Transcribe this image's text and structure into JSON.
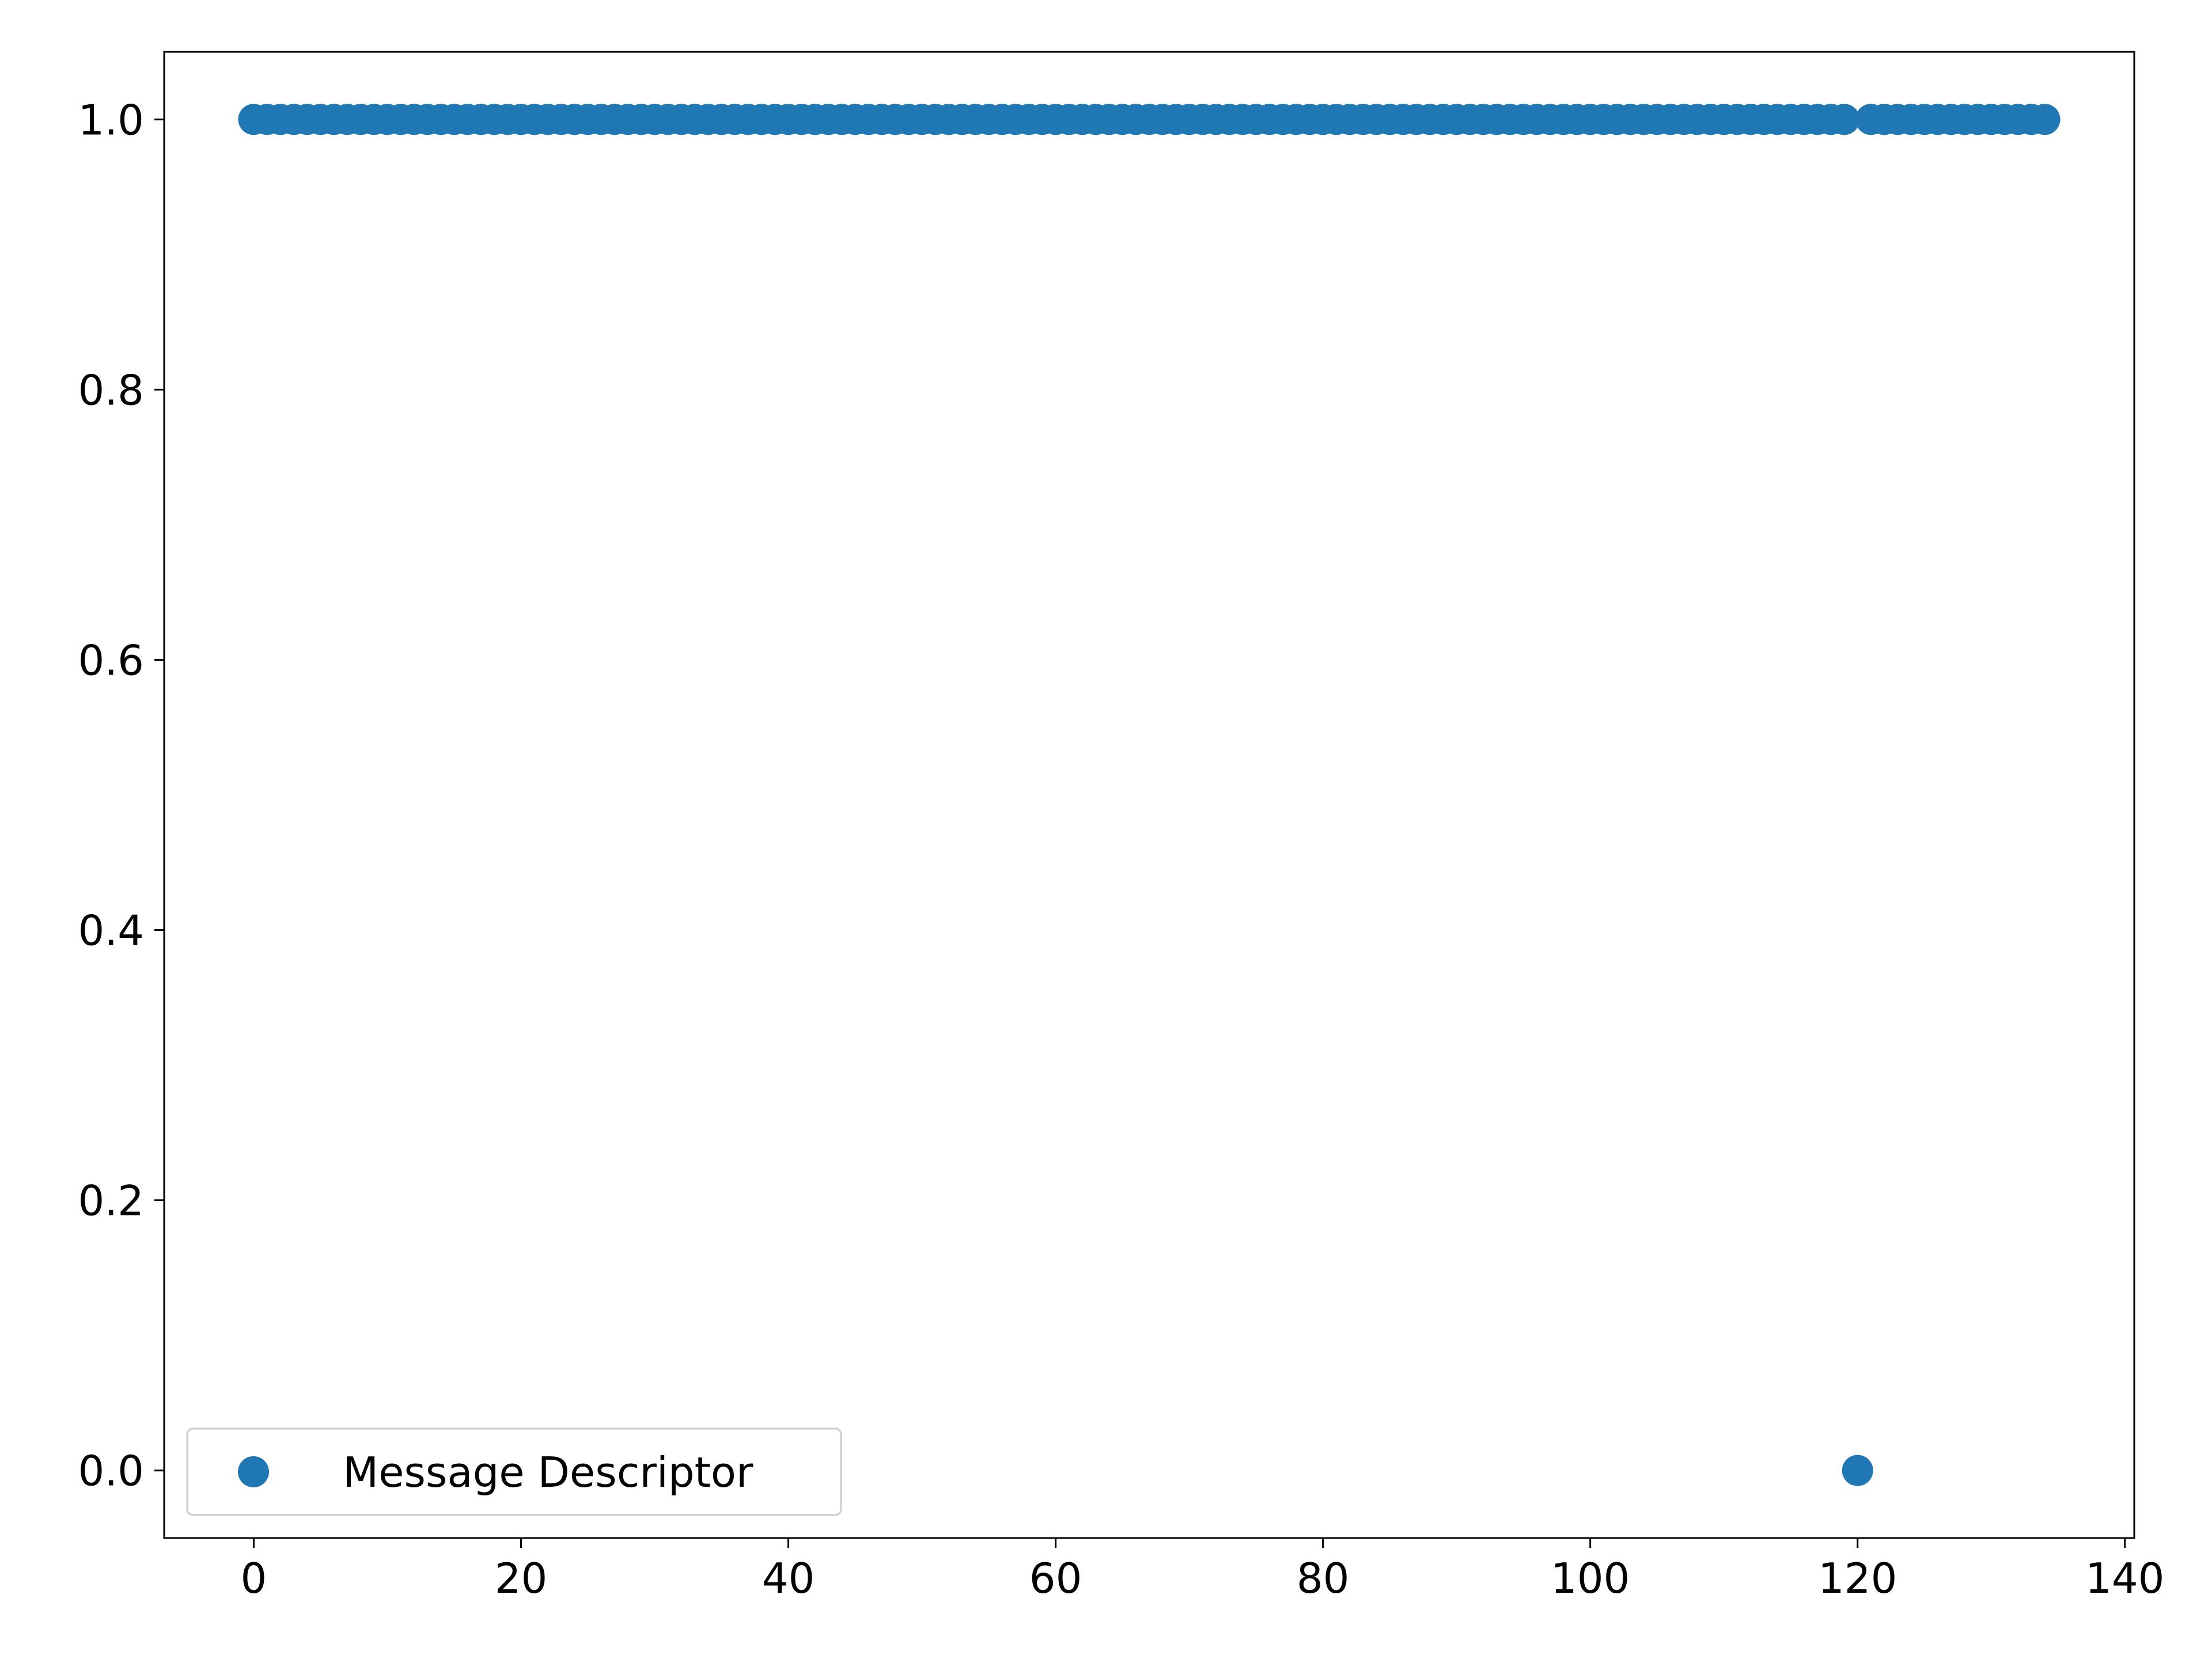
{
  "chart_data": {
    "type": "scatter",
    "title": "",
    "xlabel": "",
    "ylabel": "",
    "xlim": [
      -6.7,
      140.7
    ],
    "ylim": [
      -0.05,
      1.05
    ],
    "x_ticks": [
      0,
      20,
      40,
      60,
      80,
      100,
      120,
      140
    ],
    "x_tick_labels": [
      "0",
      "20",
      "40",
      "60",
      "80",
      "100",
      "120",
      "140"
    ],
    "y_ticks": [
      0.0,
      0.2,
      0.4,
      0.6,
      0.8,
      1.0
    ],
    "y_tick_labels": [
      "0.0",
      "0.2",
      "0.4",
      "0.6",
      "0.8",
      "1.0"
    ],
    "grid": false,
    "legend_position": "lower-left",
    "series": [
      {
        "name": "Message Descriptor",
        "color": "#1f77b4",
        "marker": "circle",
        "x": [
          0,
          1,
          2,
          3,
          4,
          5,
          6,
          7,
          8,
          9,
          10,
          11,
          12,
          13,
          14,
          15,
          16,
          17,
          18,
          19,
          20,
          21,
          22,
          23,
          24,
          25,
          26,
          27,
          28,
          29,
          30,
          31,
          32,
          33,
          34,
          35,
          36,
          37,
          38,
          39,
          40,
          41,
          42,
          43,
          44,
          45,
          46,
          47,
          48,
          49,
          50,
          51,
          52,
          53,
          54,
          55,
          56,
          57,
          58,
          59,
          60,
          61,
          62,
          63,
          64,
          65,
          66,
          67,
          68,
          69,
          70,
          71,
          72,
          73,
          74,
          75,
          76,
          77,
          78,
          79,
          80,
          81,
          82,
          83,
          84,
          85,
          86,
          87,
          88,
          89,
          90,
          91,
          92,
          93,
          94,
          95,
          96,
          97,
          98,
          99,
          100,
          101,
          102,
          103,
          104,
          105,
          106,
          107,
          108,
          109,
          110,
          111,
          112,
          113,
          114,
          115,
          116,
          117,
          118,
          119,
          120,
          121,
          122,
          123,
          124,
          125,
          126,
          127,
          128,
          129,
          130,
          131,
          132,
          133,
          134
        ],
        "y": [
          1,
          1,
          1,
          1,
          1,
          1,
          1,
          1,
          1,
          1,
          1,
          1,
          1,
          1,
          1,
          1,
          1,
          1,
          1,
          1,
          1,
          1,
          1,
          1,
          1,
          1,
          1,
          1,
          1,
          1,
          1,
          1,
          1,
          1,
          1,
          1,
          1,
          1,
          1,
          1,
          1,
          1,
          1,
          1,
          1,
          1,
          1,
          1,
          1,
          1,
          1,
          1,
          1,
          1,
          1,
          1,
          1,
          1,
          1,
          1,
          1,
          1,
          1,
          1,
          1,
          1,
          1,
          1,
          1,
          1,
          1,
          1,
          1,
          1,
          1,
          1,
          1,
          1,
          1,
          1,
          1,
          1,
          1,
          1,
          1,
          1,
          1,
          1,
          1,
          1,
          1,
          1,
          1,
          1,
          1,
          1,
          1,
          1,
          1,
          1,
          1,
          1,
          1,
          1,
          1,
          1,
          1,
          1,
          1,
          1,
          1,
          1,
          1,
          1,
          1,
          1,
          1,
          1,
          1,
          1,
          0,
          1,
          1,
          1,
          1,
          1,
          1,
          1,
          1,
          1,
          1,
          1,
          1,
          1,
          1
        ]
      }
    ]
  }
}
